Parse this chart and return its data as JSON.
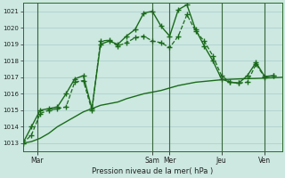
{
  "background_color": "#cce8e0",
  "grid_color": "#aacccc",
  "line_color": "#1a6b1a",
  "plot_bg": "#cce8e0",
  "xlabel": "Pression niveau de la mer( hPa )",
  "ylim": [
    1012.5,
    1021.5
  ],
  "yticks": [
    1013,
    1014,
    1015,
    1016,
    1017,
    1018,
    1019,
    1020,
    1021
  ],
  "xlim": [
    0,
    180
  ],
  "day_labels": [
    "Mar",
    "Sam",
    "Mer",
    "Jeu",
    "Ven"
  ],
  "day_positions": [
    10,
    90,
    102,
    138,
    168
  ],
  "series": [
    {
      "x": [
        0,
        6,
        12,
        18,
        24,
        30,
        36,
        42,
        48,
        54,
        60,
        66,
        72,
        78,
        84,
        90,
        96,
        102,
        108,
        114,
        120,
        126,
        132,
        138,
        144,
        150,
        156,
        162,
        168,
        174,
        180
      ],
      "y": [
        1013.0,
        1013.1,
        1013.3,
        1013.6,
        1014.0,
        1014.3,
        1014.6,
        1014.9,
        1015.1,
        1015.3,
        1015.4,
        1015.5,
        1015.7,
        1015.85,
        1016.0,
        1016.1,
        1016.2,
        1016.35,
        1016.5,
        1016.6,
        1016.7,
        1016.75,
        1016.8,
        1016.85,
        1016.88,
        1016.9,
        1016.92,
        1016.93,
        1016.95,
        1016.97,
        1017.0
      ],
      "marker": null,
      "linestyle": "-",
      "linewidth": 1.0
    },
    {
      "x": [
        0,
        6,
        12,
        18,
        24,
        30,
        36,
        42,
        48,
        54,
        60,
        66,
        72,
        78,
        84,
        90,
        96,
        102,
        108,
        114,
        120,
        126,
        132,
        138,
        144,
        150,
        156,
        162,
        168,
        174
      ],
      "y": [
        1013.0,
        1013.5,
        1014.8,
        1015.0,
        1015.1,
        1015.2,
        1016.7,
        1016.8,
        1015.0,
        1019.2,
        1019.25,
        1018.9,
        1019.1,
        1019.4,
        1019.5,
        1019.2,
        1019.1,
        1018.8,
        1019.5,
        1020.8,
        1019.8,
        1019.2,
        1018.3,
        1017.1,
        1016.7,
        1016.65,
        1016.7,
        1017.8,
        1017.0,
        1017.1
      ],
      "marker": "+",
      "markersize": 4,
      "linestyle": "--",
      "linewidth": 0.9
    },
    {
      "x": [
        0,
        6,
        12,
        18,
        24,
        30,
        36,
        42,
        48,
        54,
        60,
        66,
        72,
        78,
        84,
        90,
        96,
        102,
        108,
        114,
        120,
        126,
        132,
        138,
        144,
        150,
        156,
        162,
        168,
        174
      ],
      "y": [
        1013.0,
        1014.0,
        1015.0,
        1015.1,
        1015.2,
        1016.0,
        1016.9,
        1017.1,
        1015.1,
        1019.0,
        1019.2,
        1019.0,
        1019.5,
        1019.9,
        1020.9,
        1021.0,
        1020.1,
        1019.5,
        1021.1,
        1021.4,
        1019.9,
        1018.9,
        1018.0,
        1016.9,
        1016.7,
        1016.65,
        1017.1,
        1017.9,
        1017.05,
        1017.1
      ],
      "marker": "+",
      "markersize": 4,
      "linestyle": "-",
      "linewidth": 1.0
    }
  ]
}
